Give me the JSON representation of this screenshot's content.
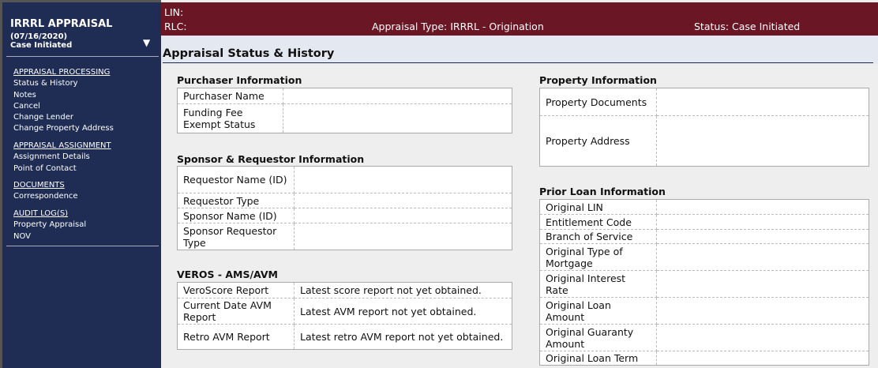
{
  "sidebar": {
    "title": "IRRRL APPRAISAL",
    "date": "(07/16/2020)",
    "status": "Case Initiated",
    "sections": [
      {
        "heading": "APPRAISAL PROCESSING",
        "items": [
          "Status & History",
          "Notes",
          "Cancel",
          "Change Lender",
          "Change Property Address"
        ]
      },
      {
        "heading": "APPRAISAL ASSIGNMENT",
        "items": [
          "Assignment Details",
          "Point of Contact"
        ]
      },
      {
        "heading": "DOCUMENTS",
        "items": [
          "Correspondence"
        ]
      },
      {
        "heading": "AUDIT LOG(S)",
        "items": [
          "Property Appraisal",
          "NOV"
        ]
      }
    ]
  },
  "header": {
    "lin": "LIN:",
    "rlc": "RLC:",
    "appraisal_type": "Appraisal Type: IRRRL - Origination",
    "status": "Status: Case Initiated",
    "bg_color": "#6b1624"
  },
  "page_title": "Appraisal Status & History",
  "purchaser": {
    "heading": "Purchaser Information",
    "rows": [
      {
        "label": "Purchaser Name",
        "value": ""
      },
      {
        "label": "Funding Fee Exempt Status",
        "value": ""
      }
    ]
  },
  "sponsor": {
    "heading": "Sponsor & Requestor Information",
    "rows": [
      {
        "label": "Requestor Name (ID)",
        "value": ""
      },
      {
        "label": "Requestor Type",
        "value": ""
      },
      {
        "label": "Sponsor Name (ID)",
        "value": ""
      },
      {
        "label": "Sponsor Requestor Type",
        "value": ""
      }
    ]
  },
  "veros": {
    "heading": "VEROS - AMS/AVM",
    "rows": [
      {
        "label": "VeroScore Report",
        "value": "Latest score report not yet obtained."
      },
      {
        "label": "Current Date AVM Report",
        "value": "Latest AVM report not yet obtained."
      },
      {
        "label": "Retro AVM Report",
        "value": "Latest retro AVM report not yet obtained."
      }
    ]
  },
  "property": {
    "heading": "Property Information",
    "rows": [
      {
        "label": "Property Documents",
        "value": ""
      },
      {
        "label": "Property Address",
        "value": ""
      }
    ]
  },
  "prior_loan": {
    "heading": "Prior Loan Information",
    "rows": [
      {
        "label": "Original LIN",
        "value": ""
      },
      {
        "label": "Entitlement Code",
        "value": ""
      },
      {
        "label": "Branch of Service",
        "value": ""
      },
      {
        "label": "Original Type of Mortgage",
        "value": ""
      },
      {
        "label": "Original Interest Rate",
        "value": ""
      },
      {
        "label": "Original Loan Amount",
        "value": ""
      },
      {
        "label": "Original Guaranty Amount",
        "value": ""
      },
      {
        "label": "Original Loan Term",
        "value": ""
      }
    ]
  }
}
